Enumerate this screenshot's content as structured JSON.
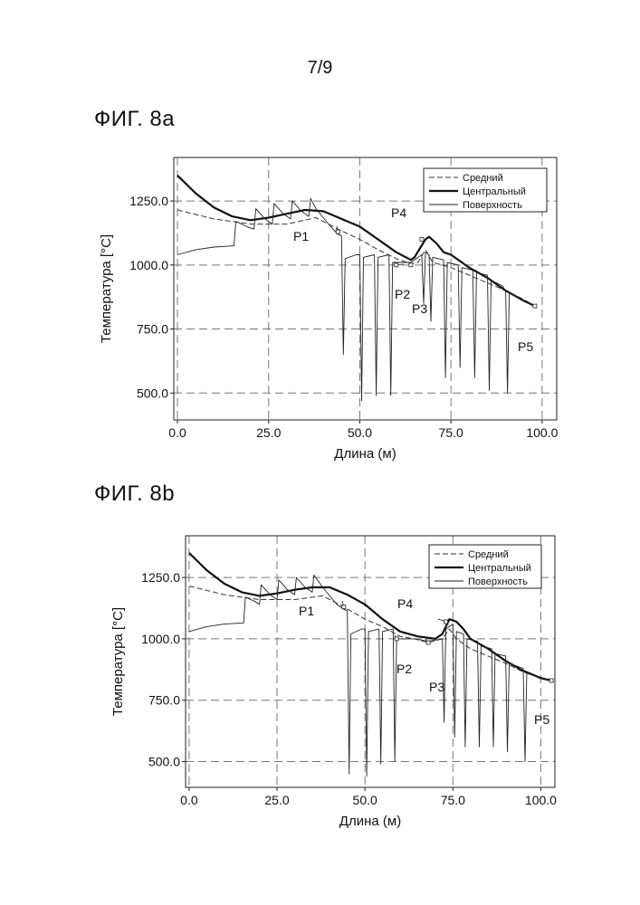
{
  "page": {
    "number": "7/9"
  },
  "figures": [
    {
      "label": "ФИГ. 8a"
    },
    {
      "label": "ФИГ. 8b"
    }
  ],
  "chart_data": [
    {
      "type": "line",
      "title": "",
      "xlabel": "Длина (м)",
      "ylabel": "Температура [°C]",
      "xlim": [
        -1,
        104
      ],
      "ylim": [
        395,
        1420
      ],
      "xticks": [
        0,
        25,
        50,
        75,
        100
      ],
      "xtick_labels": [
        "0.0",
        "25.0",
        "50.0",
        "75.0",
        "100.0"
      ],
      "yticks": [
        500,
        750,
        1000,
        1250
      ],
      "ytick_labels": [
        "500.0",
        "750.0",
        "1000.0",
        "1250.0"
      ],
      "grid": true,
      "legend_position": "top-right",
      "series": [
        {
          "name": "Средний",
          "style": "dashed",
          "points": [
            [
              0,
              1215
            ],
            [
              10,
              1180
            ],
            [
              20,
              1160
            ],
            [
              30,
              1160
            ],
            [
              38,
              1185
            ],
            [
              44,
              1140
            ],
            [
              50,
              1100
            ],
            [
              55,
              1060
            ],
            [
              60,
              1025
            ],
            [
              64,
              1005
            ],
            [
              66,
              1010
            ],
            [
              68,
              1060
            ],
            [
              70,
              1010
            ],
            [
              75,
              990
            ],
            [
              80,
              960
            ],
            [
              85,
              930
            ],
            [
              90,
              900
            ],
            [
              95,
              865
            ],
            [
              98,
              840
            ]
          ]
        },
        {
          "name": "Центральный",
          "style": "solid-thick",
          "points": [
            [
              0,
              1350
            ],
            [
              5,
              1280
            ],
            [
              10,
              1225
            ],
            [
              15,
              1190
            ],
            [
              20,
              1175
            ],
            [
              25,
              1185
            ],
            [
              30,
              1200
            ],
            [
              35,
              1215
            ],
            [
              40,
              1210
            ],
            [
              45,
              1180
            ],
            [
              50,
              1150
            ],
            [
              55,
              1100
            ],
            [
              60,
              1050
            ],
            [
              64,
              1020
            ],
            [
              65,
              1030
            ],
            [
              68,
              1100
            ],
            [
              69,
              1110
            ],
            [
              71,
              1085
            ],
            [
              73,
              1050
            ],
            [
              75,
              1040
            ],
            [
              78,
              1010
            ],
            [
              80,
              990
            ],
            [
              85,
              950
            ],
            [
              88,
              920
            ],
            [
              90,
              900
            ],
            [
              95,
              860
            ],
            [
              98,
              840
            ]
          ]
        },
        {
          "name": "Поверхность",
          "style": "solid-thin",
          "points": [
            [
              0,
              1040
            ],
            [
              5,
              1060
            ],
            [
              10,
              1070
            ],
            [
              15.5,
              1075
            ],
            [
              16,
              1170
            ],
            [
              19,
              1150
            ],
            [
              21,
              1140
            ],
            [
              21.5,
              1220
            ],
            [
              24,
              1180
            ],
            [
              26,
              1160
            ],
            [
              26.5,
              1240
            ],
            [
              29,
              1200
            ],
            [
              31,
              1180
            ],
            [
              31.5,
              1250
            ],
            [
              34,
              1210
            ],
            [
              36,
              1190
            ],
            [
              36.5,
              1260
            ],
            [
              38,
              1220
            ],
            [
              42,
              1150
            ],
            [
              44,
              1120
            ],
            [
              45,
              1115
            ],
            [
              45.5,
              650
            ],
            [
              46,
              1025
            ],
            [
              49,
              1040
            ],
            [
              50,
              1040
            ],
            [
              50.5,
              470
            ],
            [
              51,
              1030
            ],
            [
              54,
              1040
            ],
            [
              54.5,
              490
            ],
            [
              55,
              1030
            ],
            [
              58,
              1040
            ],
            [
              58.5,
              490
            ],
            [
              59,
              1010
            ],
            [
              64,
              1010
            ],
            [
              66,
              1030
            ],
            [
              67,
              1040
            ],
            [
              67.5,
              850
            ],
            [
              68,
              1050
            ],
            [
              69,
              1040
            ],
            [
              69.5,
              780
            ],
            [
              70,
              1030
            ],
            [
              73,
              1020
            ],
            [
              73.5,
              560
            ],
            [
              74,
              1010
            ],
            [
              77,
              1000
            ],
            [
              77.5,
              600
            ],
            [
              78,
              990
            ],
            [
              81,
              980
            ],
            [
              81.5,
              560
            ],
            [
              82,
              970
            ],
            [
              85,
              960
            ],
            [
              85.5,
              510
            ],
            [
              86,
              940
            ],
            [
              89,
              920
            ],
            [
              90,
              900
            ],
            [
              90.5,
              500
            ],
            [
              91,
              890
            ],
            [
              95,
              860
            ],
            [
              98,
              840
            ]
          ]
        }
      ],
      "annotations": [
        {
          "text": "P1",
          "x": 44,
          "y": 1130
        },
        {
          "text": "P2",
          "x": 60,
          "y": 1000
        },
        {
          "text": "P3",
          "x": 64,
          "y": 1000
        },
        {
          "text": "P4",
          "x": 67,
          "y": 1100
        },
        {
          "text": "P5",
          "x": 98,
          "y": 840
        }
      ]
    },
    {
      "type": "line",
      "title": "",
      "xlabel": "Длина (м)",
      "ylabel": "Температура [°C]",
      "xlim": [
        -1,
        104
      ],
      "ylim": [
        395,
        1420
      ],
      "xticks": [
        0,
        25,
        50,
        75,
        100
      ],
      "xtick_labels": [
        "0.0",
        "25.0",
        "50.0",
        "75.0",
        "100.0"
      ],
      "yticks": [
        500,
        750,
        1000,
        1250
      ],
      "ytick_labels": [
        "500.0",
        "750.0",
        "1000.0",
        "1250.0"
      ],
      "grid": true,
      "legend_position": "top-right",
      "series": [
        {
          "name": "Средний",
          "style": "dashed",
          "points": [
            [
              0,
              1215
            ],
            [
              10,
              1180
            ],
            [
              20,
              1160
            ],
            [
              30,
              1160
            ],
            [
              38,
              1175
            ],
            [
              44,
              1130
            ],
            [
              50,
              1080
            ],
            [
              55,
              1050
            ],
            [
              60,
              1010
            ],
            [
              64,
              1000
            ],
            [
              68,
              985
            ],
            [
              72,
              1000
            ],
            [
              74,
              1040
            ],
            [
              76,
              1000
            ],
            [
              80,
              960
            ],
            [
              85,
              930
            ],
            [
              90,
              900
            ],
            [
              95,
              865
            ],
            [
              103,
              830
            ]
          ]
        },
        {
          "name": "Центральный",
          "style": "solid-thick",
          "points": [
            [
              0,
              1350
            ],
            [
              5,
              1280
            ],
            [
              10,
              1225
            ],
            [
              15,
              1190
            ],
            [
              20,
              1175
            ],
            [
              25,
              1185
            ],
            [
              30,
              1200
            ],
            [
              35,
              1210
            ],
            [
              40,
              1210
            ],
            [
              45,
              1180
            ],
            [
              50,
              1140
            ],
            [
              55,
              1080
            ],
            [
              60,
              1030
            ],
            [
              65,
              1010
            ],
            [
              70,
              1000
            ],
            [
              72,
              1020
            ],
            [
              74,
              1080
            ],
            [
              76,
              1070
            ],
            [
              78,
              1040
            ],
            [
              80,
              1000
            ],
            [
              85,
              960
            ],
            [
              90,
              910
            ],
            [
              95,
              870
            ],
            [
              100,
              840
            ],
            [
              103,
              830
            ]
          ]
        },
        {
          "name": "Поверхность",
          "style": "solid-thin",
          "points": [
            [
              0,
              1030
            ],
            [
              5,
              1050
            ],
            [
              10,
              1060
            ],
            [
              15.5,
              1065
            ],
            [
              16,
              1170
            ],
            [
              19,
              1150
            ],
            [
              20,
              1140
            ],
            [
              20.5,
              1220
            ],
            [
              23,
              1180
            ],
            [
              25,
              1160
            ],
            [
              25.5,
              1240
            ],
            [
              28,
              1200
            ],
            [
              30,
              1180
            ],
            [
              30.5,
              1250
            ],
            [
              33,
              1210
            ],
            [
              35,
              1190
            ],
            [
              35.5,
              1260
            ],
            [
              38,
              1210
            ],
            [
              42,
              1140
            ],
            [
              44,
              1120
            ],
            [
              45,
              1115
            ],
            [
              45.5,
              450
            ],
            [
              46,
              1020
            ],
            [
              49,
              1040
            ],
            [
              50,
              1040
            ],
            [
              50.5,
              440
            ],
            [
              51,
              1030
            ],
            [
              54,
              1040
            ],
            [
              54.5,
              490
            ],
            [
              55,
              1030
            ],
            [
              58,
              1040
            ],
            [
              58.5,
              500
            ],
            [
              59,
              1000
            ],
            [
              64,
              1000
            ],
            [
              68,
              990
            ],
            [
              72,
              1000
            ],
            [
              72.5,
              660
            ],
            [
              73,
              1040
            ],
            [
              75,
              1060
            ],
            [
              75.5,
              600
            ],
            [
              76,
              1030
            ],
            [
              78,
              1020
            ],
            [
              78.5,
              560
            ],
            [
              79,
              1000
            ],
            [
              82,
              990
            ],
            [
              82.5,
              560
            ],
            [
              83,
              970
            ],
            [
              86,
              960
            ],
            [
              86.5,
              560
            ],
            [
              87,
              940
            ],
            [
              90,
              930
            ],
            [
              90.5,
              540
            ],
            [
              91,
              900
            ],
            [
              95,
              880
            ],
            [
              95.5,
              500
            ],
            [
              96,
              860
            ],
            [
              100,
              840
            ],
            [
              103,
              830
            ]
          ]
        }
      ],
      "annotations": [
        {
          "text": "P1",
          "x": 44,
          "y": 1130
        },
        {
          "text": "P2",
          "x": 59,
          "y": 1000
        },
        {
          "text": "P3",
          "x": 68,
          "y": 985
        },
        {
          "text": "P4",
          "x": 73,
          "y": 1070
        },
        {
          "text": "P5",
          "x": 103,
          "y": 830
        }
      ]
    }
  ]
}
